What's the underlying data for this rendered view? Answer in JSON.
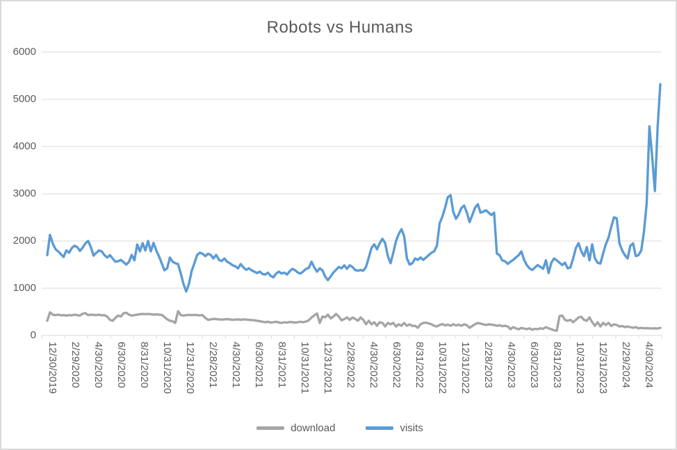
{
  "text_color": "#595959",
  "gridline_color": "#d9d9d9",
  "frame_border_color": "#d9d9d9",
  "chart_data": {
    "type": "line",
    "title": "Robots vs Humans",
    "xlabel": "",
    "ylabel": "",
    "ylim": [
      0,
      6000
    ],
    "y_ticks": [
      0,
      1000,
      2000,
      3000,
      4000,
      5000,
      6000
    ],
    "grid": true,
    "legend_position": "bottom",
    "x_interval": "weekly",
    "x_tick_labels": [
      "12/30/2019",
      "2/29/2020",
      "4/30/2020",
      "6/30/2020",
      "8/31/2020",
      "10/31/2020",
      "12/31/2020",
      "2/28/2021",
      "4/30/2021",
      "6/30/2021",
      "8/31/2021",
      "10/31/2021",
      "12/31/2021",
      "2/28/2022",
      "4/30/2022",
      "6/30/2022",
      "8/31/2022",
      "10/31/2022",
      "12/31/2022",
      "2/28/2023",
      "4/30/2023",
      "6/30/2023",
      "8/31/2023",
      "10/31/2023",
      "12/31/2023",
      "2/29/2024",
      "4/30/2024"
    ],
    "series": [
      {
        "name": "download",
        "color": "#a5a5a5",
        "values": [
          310,
          490,
          440,
          430,
          440,
          425,
          430,
          420,
          430,
          425,
          440,
          430,
          420,
          460,
          470,
          430,
          440,
          435,
          430,
          440,
          425,
          430,
          400,
          330,
          310,
          370,
          420,
          400,
          470,
          480,
          440,
          420,
          430,
          440,
          450,
          455,
          450,
          455,
          450,
          440,
          445,
          440,
          435,
          390,
          340,
          310,
          300,
          265,
          515,
          430,
          420,
          430,
          435,
          430,
          435,
          430,
          425,
          430,
          370,
          330,
          340,
          350,
          345,
          340,
          335,
          340,
          345,
          340,
          330,
          335,
          340,
          330,
          340,
          335,
          330,
          325,
          320,
          310,
          300,
          290,
          280,
          290,
          270,
          280,
          290,
          275,
          265,
          280,
          270,
          285,
          280,
          270,
          280,
          290,
          280,
          295,
          320,
          380,
          425,
          465,
          265,
          400,
          382,
          440,
          360,
          400,
          455,
          400,
          320,
          345,
          382,
          330,
          380,
          350,
          310,
          380,
          330,
          235,
          310,
          235,
          280,
          205,
          280,
          265,
          190,
          265,
          235,
          265,
          190,
          235,
          205,
          265,
          205,
          235,
          200,
          205,
          162,
          235,
          265,
          270,
          255,
          235,
          205,
          190,
          220,
          240,
          210,
          230,
          205,
          235,
          210,
          230,
          205,
          235,
          215,
          162,
          200,
          235,
          265,
          250,
          235,
          220,
          235,
          230,
          220,
          205,
          215,
          195,
          205,
          190,
          132,
          175,
          150,
          130,
          160,
          145,
          132,
          150,
          120,
          140,
          132,
          150,
          140,
          175,
          150,
          130,
          110,
          100,
          410,
          420,
          330,
          310,
          330,
          280,
          330,
          382,
          395,
          330,
          310,
          382,
          280,
          205,
          280,
          190,
          265,
          220,
          265,
          200,
          235,
          220,
          190,
          200,
          175,
          190,
          175,
          162,
          175,
          150,
          160,
          150,
          155,
          150,
          148,
          150,
          145,
          160
        ]
      },
      {
        "name": "visits",
        "color": "#5b9bd5",
        "values": [
          1700,
          2130,
          1950,
          1830,
          1780,
          1720,
          1660,
          1800,
          1750,
          1850,
          1900,
          1870,
          1790,
          1860,
          1950,
          2000,
          1870,
          1690,
          1750,
          1800,
          1780,
          1700,
          1650,
          1700,
          1630,
          1560,
          1570,
          1600,
          1550,
          1500,
          1560,
          1705,
          1590,
          1926,
          1780,
          1955,
          1800,
          2000,
          1780,
          1960,
          1800,
          1677,
          1530,
          1380,
          1420,
          1650,
          1560,
          1530,
          1510,
          1310,
          1090,
          930,
          1090,
          1368,
          1530,
          1705,
          1750,
          1730,
          1680,
          1730,
          1705,
          1630,
          1705,
          1600,
          1575,
          1630,
          1560,
          1530,
          1485,
          1465,
          1420,
          1510,
          1440,
          1390,
          1420,
          1380,
          1350,
          1320,
          1350,
          1300,
          1290,
          1330,
          1260,
          1230,
          1310,
          1350,
          1310,
          1330,
          1290,
          1360,
          1410,
          1380,
          1330,
          1310,
          1360,
          1410,
          1430,
          1560,
          1440,
          1350,
          1420,
          1380,
          1250,
          1170,
          1250,
          1330,
          1390,
          1450,
          1420,
          1485,
          1410,
          1485,
          1450,
          1385,
          1370,
          1385,
          1370,
          1450,
          1650,
          1853,
          1930,
          1824,
          1950,
          2045,
          1956,
          1680,
          1530,
          1750,
          2000,
          2150,
          2250,
          2100,
          1632,
          1500,
          1530,
          1630,
          1600,
          1650,
          1600,
          1650,
          1700,
          1750,
          1780,
          1900,
          2370,
          2515,
          2700,
          2926,
          2970,
          2617,
          2470,
          2560,
          2700,
          2750,
          2600,
          2400,
          2550,
          2700,
          2780,
          2600,
          2620,
          2650,
          2600,
          2550,
          2600,
          1735,
          1700,
          1588,
          1570,
          1515,
          1560,
          1600,
          1650,
          1700,
          1780,
          1600,
          1490,
          1420,
          1385,
          1440,
          1490,
          1450,
          1410,
          1590,
          1320,
          1540,
          1630,
          1590,
          1540,
          1490,
          1540,
          1420,
          1440,
          1630,
          1850,
          1955,
          1780,
          1680,
          1870,
          1590,
          1930,
          1630,
          1540,
          1520,
          1735,
          1930,
          2070,
          2300,
          2500,
          2480,
          1950,
          1800,
          1700,
          1630,
          1900,
          1950,
          1680,
          1700,
          1800,
          2200,
          2800,
          4426,
          3800,
          3059,
          4400,
          5320
        ]
      }
    ]
  },
  "legend": {
    "items": [
      {
        "label": "download"
      },
      {
        "label": "visits"
      }
    ]
  }
}
